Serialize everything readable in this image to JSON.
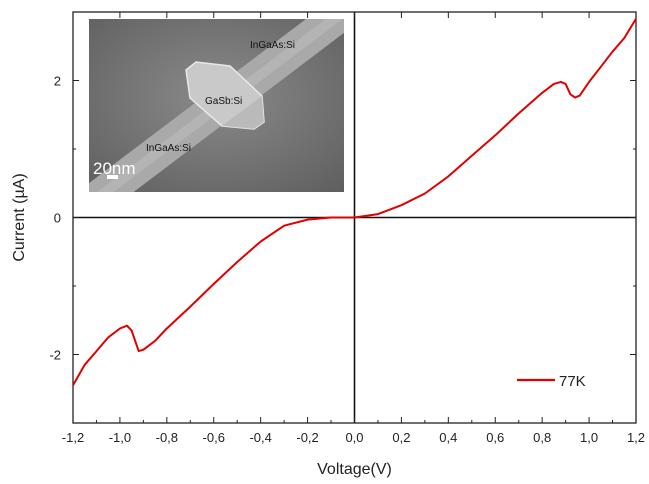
{
  "chart_data": {
    "type": "line",
    "title": "",
    "xlabel": "Voltage(V)",
    "ylabel": "Current (µA)",
    "xlim": [
      -1.2,
      1.2
    ],
    "ylim": [
      -3,
      3
    ],
    "xticks": [
      -1.2,
      -1.0,
      -0.8,
      -0.6,
      -0.4,
      -0.2,
      0.0,
      0.2,
      0.4,
      0.6,
      0.8,
      1.0,
      1.2
    ],
    "xtick_labels": [
      "-1,2",
      "-1,0",
      "-0,8",
      "-0,6",
      "-0,4",
      "-0,2",
      "0,0",
      "0,2",
      "0,4",
      "0,6",
      "0,8",
      "1,0",
      "1,2"
    ],
    "yticks": [
      -2,
      0,
      2
    ],
    "ytick_labels": [
      "-2",
      "0",
      "2"
    ],
    "grid": false,
    "legend_position": "bottom-right",
    "series": [
      {
        "name": "77K",
        "color": "#e00000",
        "x": [
          -1.2,
          -1.15,
          -1.1,
          -1.05,
          -1.0,
          -0.97,
          -0.95,
          -0.93,
          -0.92,
          -0.9,
          -0.85,
          -0.8,
          -0.7,
          -0.6,
          -0.5,
          -0.4,
          -0.3,
          -0.2,
          -0.1,
          0.0,
          0.1,
          0.2,
          0.3,
          0.4,
          0.5,
          0.6,
          0.7,
          0.8,
          0.85,
          0.88,
          0.9,
          0.92,
          0.94,
          0.96,
          1.0,
          1.05,
          1.1,
          1.15,
          1.2
        ],
        "y": [
          -2.45,
          -2.15,
          -1.95,
          -1.75,
          -1.62,
          -1.58,
          -1.65,
          -1.85,
          -1.95,
          -1.93,
          -1.8,
          -1.62,
          -1.3,
          -0.97,
          -0.65,
          -0.35,
          -0.12,
          -0.03,
          0.0,
          0.0,
          0.05,
          0.18,
          0.35,
          0.6,
          0.9,
          1.2,
          1.52,
          1.82,
          1.95,
          1.98,
          1.95,
          1.8,
          1.75,
          1.78,
          1.98,
          2.2,
          2.42,
          2.62,
          2.9
        ]
      }
    ],
    "inset": {
      "labels": [
        "InGaAs:Si",
        "GaSb:Si",
        "InGaAs:Si"
      ],
      "scale_bar": "20nm"
    }
  }
}
